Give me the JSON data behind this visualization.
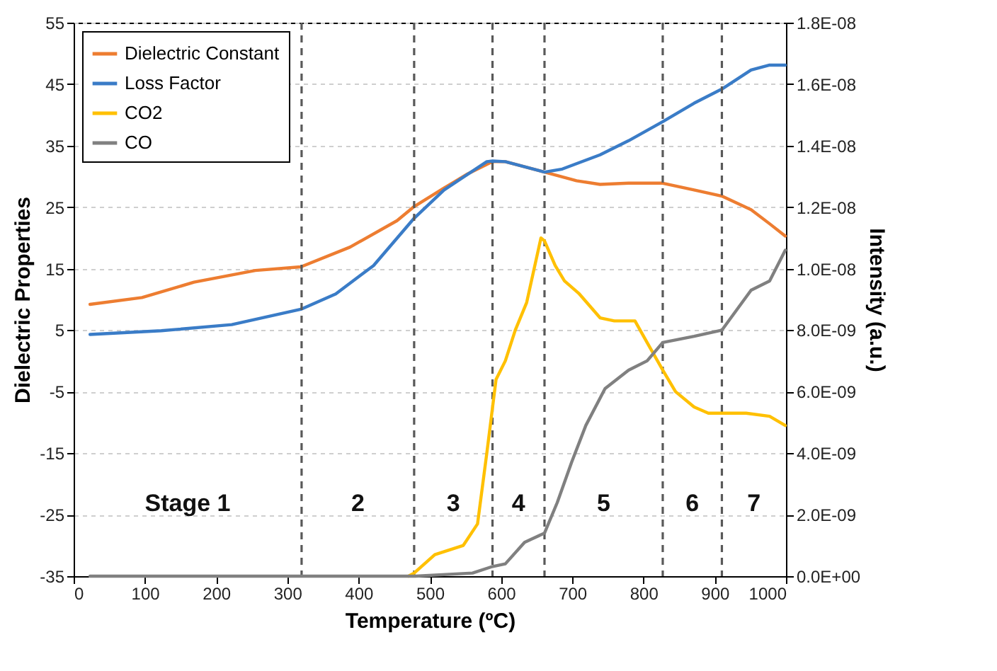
{
  "chart_data": {
    "type": "line",
    "xlabel": "Temperature (ºC)",
    "ylabel": "Dielectric Properties",
    "y2label": "Intensity (a.u.)",
    "xlim": [
      0,
      1000
    ],
    "xticks": [
      0,
      100,
      200,
      300,
      400,
      500,
      600,
      700,
      800,
      900,
      1000
    ],
    "ylim": [
      -35,
      55
    ],
    "yticks": [
      -35,
      -25,
      -15,
      -5,
      5,
      15,
      25,
      35,
      45,
      55
    ],
    "y2lim": [
      0,
      1.8e-08
    ],
    "y2ticks": [
      {
        "value": 0,
        "label": "0.0E+00"
      },
      {
        "value": 2e-09,
        "label": "2.0E-09"
      },
      {
        "value": 4e-09,
        "label": "4.0E-09"
      },
      {
        "value": 6e-09,
        "label": "6.0E-09"
      },
      {
        "value": 8e-09,
        "label": "8.0E-09"
      },
      {
        "value": 1e-08,
        "label": "1.0E-08"
      },
      {
        "value": 1.2e-08,
        "label": "1.2E-08"
      },
      {
        "value": 1.4e-08,
        "label": "1.4E-08"
      },
      {
        "value": 1.6e-08,
        "label": "1.6E-08"
      },
      {
        "value": 1.8e-08,
        "label": "1.8E-08"
      }
    ],
    "grid": "y",
    "legend": "top left",
    "line_style": "solid",
    "marker": "none",
    "series": [
      {
        "name": "Dielectric Constant",
        "color": "#ed7d31",
        "x": [
          23,
          96,
          169,
          255,
          319,
          388,
          454,
          478,
          520,
          553,
          588,
          606,
          661,
          706,
          739,
          779,
          827,
          871,
          910,
          951,
          977,
          999
        ],
        "values": [
          9.2,
          10.3,
          12.8,
          14.7,
          15.3,
          18.5,
          22.8,
          25.1,
          28.1,
          30.4,
          32.4,
          32.4,
          30.7,
          29.3,
          28.7,
          28.9,
          28.9,
          27.8,
          26.8,
          24.6,
          22.3,
          20.3
        ]
      },
      {
        "name": "Loss Factor",
        "color": "#3a7cc7",
        "x": [
          23,
          123,
          222,
          319,
          368,
          421,
          478,
          520,
          580,
          588,
          606,
          661,
          686,
          739,
          779,
          827,
          871,
          910,
          951,
          977,
          999
        ],
        "values": [
          4.3,
          4.9,
          5.9,
          8.4,
          10.9,
          15.5,
          23.2,
          27.8,
          32.4,
          32.5,
          32.4,
          30.7,
          31.2,
          33.5,
          35.8,
          38.9,
          41.9,
          44.2,
          47.3,
          48.1,
          48.1
        ]
      },
      {
        "name": "CO2",
        "color": "#ffc000",
        "axis": "y2",
        "x": [
          470,
          478,
          507,
          547,
          567,
          580,
          593,
          606,
          620,
          636,
          656,
          661,
          676,
          689,
          709,
          739,
          759,
          788,
          805,
          827,
          845,
          871,
          891,
          910,
          944,
          977,
          999
        ],
        "values": [
          0,
          1e-10,
          7e-10,
          1e-09,
          1.7e-09,
          4e-09,
          6.4e-09,
          7e-09,
          8e-09,
          8.9e-09,
          1.1e-08,
          1.09e-08,
          1.01e-08,
          9.6e-09,
          9.2e-09,
          8.4e-09,
          8.3e-09,
          8.3e-09,
          7.6e-09,
          6.7e-09,
          6e-09,
          5.5e-09,
          5.3e-09,
          5.3e-09,
          5.3e-09,
          5.2e-09,
          4.9e-09
        ]
      },
      {
        "name": "CO",
        "color": "#808080",
        "axis": "y2",
        "x": [
          23,
          200,
          400,
          480,
          560,
          586,
          606,
          633,
          661,
          679,
          699,
          719,
          746,
          779,
          805,
          827,
          871,
          910,
          951,
          977,
          999
        ],
        "values": [
          0,
          0,
          0,
          0,
          1e-10,
          3e-10,
          4e-10,
          1.1e-09,
          1.4e-09,
          2.4e-09,
          3.7e-09,
          4.9e-09,
          6.1e-09,
          6.7e-09,
          7e-09,
          7.6e-09,
          7.8e-09,
          8e-09,
          9.3e-09,
          9.6e-09,
          1.06e-08
        ]
      }
    ],
    "ref_lines": [
      {
        "axis": "x",
        "value": 320,
        "color": "#595959",
        "line_style": "dashed"
      },
      {
        "axis": "x",
        "value": 478,
        "color": "#595959",
        "line_style": "dashed"
      },
      {
        "axis": "x",
        "value": 588,
        "color": "#595959",
        "line_style": "dashed"
      },
      {
        "axis": "x",
        "value": 661,
        "color": "#595959",
        "line_style": "dashed"
      },
      {
        "axis": "x",
        "value": 827,
        "color": "#595959",
        "line_style": "dashed"
      },
      {
        "axis": "x",
        "value": 910,
        "color": "#595959",
        "line_style": "dashed"
      }
    ],
    "annotations": [
      "Stage 1",
      "2",
      "3",
      "4",
      "5",
      "6",
      "7"
    ]
  }
}
